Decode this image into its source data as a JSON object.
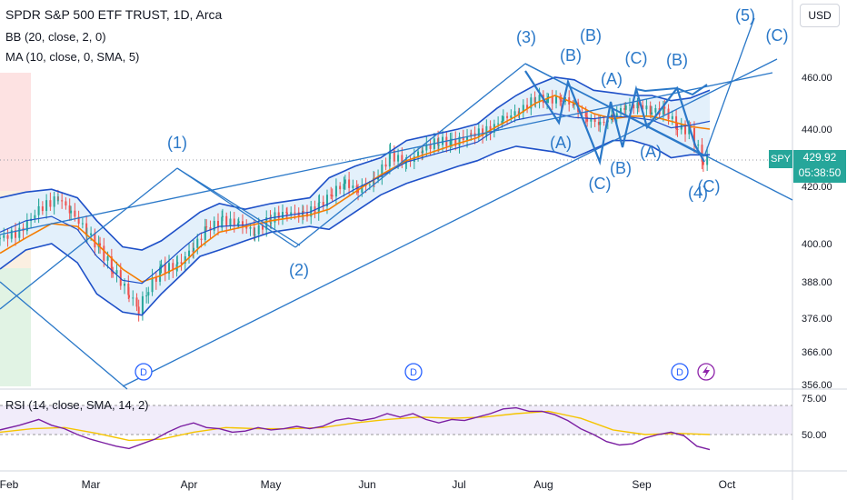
{
  "header": {
    "title": "SPDR S&P 500 ETF TRUST, 1D, Arca",
    "bb": "BB (20, close, 2, 0)",
    "ma": "MA (10, close, 0, SMA, 5)",
    "rsi": "RSI (14, close, SMA, 14, 2)",
    "currency": "USD"
  },
  "price_tag": {
    "symbol": "SPY",
    "price": "429.92",
    "countdown": "05:38:50",
    "color": "#26a69a"
  },
  "colors": {
    "candle_up": "#26a69a",
    "candle_down": "#ef5350",
    "bb": "#1e50c8",
    "bb_fill": "#e3f0fb",
    "ma": "#f57c00",
    "wave": "#2a78c8",
    "rsi_line": "#7b1fa2",
    "rsi_ma": "#f5c400",
    "rsi_band": "#f1ecfa"
  },
  "chart_data": {
    "type": "line",
    "price_axis": {
      "ticks": [
        460,
        440,
        420,
        400,
        388,
        376,
        366,
        356
      ],
      "labels": [
        "460.00",
        "440.00",
        "420.00",
        "400.00",
        "388.00",
        "376.00",
        "366.00",
        "356.00"
      ]
    },
    "rsi_axis": {
      "ticks": [
        75,
        50
      ],
      "labels": [
        "75.00",
        "50.00"
      ]
    },
    "months": [
      "Feb",
      "Mar",
      "Apr",
      "May",
      "Jun",
      "Jul",
      "Aug",
      "Sep",
      "Oct"
    ],
    "price_close": [
      [
        0,
        402
      ],
      [
        6,
        404
      ],
      [
        12,
        412
      ],
      [
        18,
        416
      ],
      [
        22,
        411
      ],
      [
        27,
        404
      ],
      [
        31,
        398
      ],
      [
        35,
        392
      ],
      [
        40,
        384
      ],
      [
        43,
        379
      ],
      [
        46,
        386
      ],
      [
        50,
        392
      ],
      [
        55,
        393
      ],
      [
        60,
        399
      ],
      [
        64,
        405
      ],
      [
        69,
        408
      ],
      [
        74,
        407
      ],
      [
        79,
        404
      ],
      [
        84,
        409
      ],
      [
        89,
        411
      ],
      [
        94,
        410
      ],
      [
        99,
        413
      ],
      [
        103,
        418
      ],
      [
        107,
        421
      ],
      [
        111,
        419
      ],
      [
        116,
        422
      ],
      [
        121,
        431
      ],
      [
        126,
        428
      ],
      [
        131,
        433
      ],
      [
        136,
        436
      ],
      [
        140,
        435
      ],
      [
        146,
        438
      ],
      [
        152,
        440
      ],
      [
        156,
        444
      ],
      [
        161,
        447
      ],
      [
        166,
        452
      ],
      [
        170,
        451
      ],
      [
        174,
        452
      ],
      [
        178,
        449
      ],
      [
        182,
        444
      ],
      [
        186,
        442
      ],
      [
        190,
        445
      ],
      [
        194,
        449
      ],
      [
        198,
        449
      ],
      [
        202,
        447
      ],
      [
        206,
        447
      ],
      [
        210,
        441
      ],
      [
        214,
        439
      ],
      [
        218,
        429
      ],
      [
        220,
        430
      ]
    ],
    "bb_upper": [
      [
        0,
        416
      ],
      [
        8,
        418
      ],
      [
        16,
        419
      ],
      [
        24,
        416
      ],
      [
        30,
        408
      ],
      [
        38,
        399
      ],
      [
        44,
        398
      ],
      [
        50,
        401
      ],
      [
        56,
        406
      ],
      [
        62,
        411
      ],
      [
        68,
        414
      ],
      [
        76,
        412
      ],
      [
        84,
        414
      ],
      [
        90,
        415
      ],
      [
        96,
        416
      ],
      [
        102,
        423
      ],
      [
        110,
        427
      ],
      [
        118,
        430
      ],
      [
        126,
        436
      ],
      [
        134,
        438
      ],
      [
        142,
        440
      ],
      [
        148,
        442
      ],
      [
        154,
        448
      ],
      [
        160,
        453
      ],
      [
        166,
        457
      ],
      [
        172,
        460
      ],
      [
        178,
        459
      ],
      [
        184,
        455
      ],
      [
        190,
        454
      ],
      [
        196,
        453
      ],
      [
        202,
        453
      ],
      [
        208,
        451
      ],
      [
        214,
        452
      ],
      [
        220,
        455
      ]
    ],
    "bb_lower": [
      [
        0,
        392
      ],
      [
        8,
        398
      ],
      [
        16,
        400
      ],
      [
        24,
        394
      ],
      [
        30,
        384
      ],
      [
        38,
        378
      ],
      [
        44,
        377
      ],
      [
        50,
        384
      ],
      [
        56,
        390
      ],
      [
        62,
        396
      ],
      [
        68,
        398
      ],
      [
        76,
        401
      ],
      [
        84,
        404
      ],
      [
        90,
        405
      ],
      [
        96,
        406
      ],
      [
        102,
        405
      ],
      [
        110,
        411
      ],
      [
        118,
        417
      ],
      [
        126,
        421
      ],
      [
        134,
        424
      ],
      [
        142,
        427
      ],
      [
        148,
        429
      ],
      [
        154,
        432
      ],
      [
        160,
        434
      ],
      [
        166,
        433
      ],
      [
        172,
        432
      ],
      [
        178,
        430
      ],
      [
        184,
        433
      ],
      [
        190,
        436
      ],
      [
        196,
        436
      ],
      [
        202,
        434
      ],
      [
        208,
        430
      ],
      [
        214,
        431
      ],
      [
        220,
        431
      ]
    ],
    "ma": [
      [
        0,
        397
      ],
      [
        8,
        402
      ],
      [
        16,
        407
      ],
      [
        24,
        406
      ],
      [
        30,
        400
      ],
      [
        38,
        392
      ],
      [
        44,
        388
      ],
      [
        50,
        390
      ],
      [
        56,
        393
      ],
      [
        62,
        399
      ],
      [
        68,
        404
      ],
      [
        76,
        406
      ],
      [
        84,
        408
      ],
      [
        90,
        409
      ],
      [
        96,
        410
      ],
      [
        102,
        412
      ],
      [
        110,
        418
      ],
      [
        118,
        424
      ],
      [
        126,
        429
      ],
      [
        134,
        432
      ],
      [
        142,
        435
      ],
      [
        148,
        437
      ],
      [
        154,
        441
      ],
      [
        160,
        445
      ],
      [
        166,
        450
      ],
      [
        172,
        453
      ],
      [
        178,
        450
      ],
      [
        184,
        446
      ],
      [
        190,
        444
      ],
      [
        196,
        445
      ],
      [
        202,
        445
      ],
      [
        208,
        443
      ],
      [
        214,
        441
      ],
      [
        220,
        440
      ]
    ],
    "rsi": [
      [
        0,
        54
      ],
      [
        6,
        58
      ],
      [
        12,
        63
      ],
      [
        16,
        58
      ],
      [
        20,
        55
      ],
      [
        24,
        50
      ],
      [
        28,
        46
      ],
      [
        32,
        43
      ],
      [
        36,
        40
      ],
      [
        40,
        38
      ],
      [
        44,
        42
      ],
      [
        48,
        46
      ],
      [
        52,
        52
      ],
      [
        56,
        57
      ],
      [
        60,
        60
      ],
      [
        64,
        56
      ],
      [
        68,
        55
      ],
      [
        72,
        52
      ],
      [
        76,
        53
      ],
      [
        80,
        56
      ],
      [
        84,
        54
      ],
      [
        88,
        55
      ],
      [
        92,
        57
      ],
      [
        96,
        55
      ],
      [
        100,
        57
      ],
      [
        104,
        62
      ],
      [
        108,
        64
      ],
      [
        112,
        62
      ],
      [
        116,
        64
      ],
      [
        120,
        68
      ],
      [
        124,
        65
      ],
      [
        128,
        68
      ],
      [
        132,
        63
      ],
      [
        136,
        60
      ],
      [
        140,
        63
      ],
      [
        144,
        62
      ],
      [
        148,
        65
      ],
      [
        152,
        68
      ],
      [
        156,
        72
      ],
      [
        160,
        73
      ],
      [
        164,
        70
      ],
      [
        168,
        70
      ],
      [
        172,
        67
      ],
      [
        176,
        62
      ],
      [
        180,
        55
      ],
      [
        184,
        50
      ],
      [
        188,
        44
      ],
      [
        192,
        41
      ],
      [
        196,
        42
      ],
      [
        200,
        47
      ],
      [
        204,
        50
      ],
      [
        208,
        52
      ],
      [
        212,
        49
      ],
      [
        216,
        40
      ],
      [
        220,
        37
      ]
    ],
    "rsi_ma": [
      [
        0,
        52
      ],
      [
        10,
        55
      ],
      [
        20,
        56
      ],
      [
        30,
        51
      ],
      [
        40,
        45
      ],
      [
        50,
        46
      ],
      [
        60,
        52
      ],
      [
        70,
        56
      ],
      [
        80,
        55
      ],
      [
        90,
        55
      ],
      [
        100,
        56
      ],
      [
        110,
        60
      ],
      [
        120,
        63
      ],
      [
        130,
        65
      ],
      [
        140,
        64
      ],
      [
        150,
        65
      ],
      [
        160,
        68
      ],
      [
        170,
        70
      ],
      [
        180,
        64
      ],
      [
        190,
        54
      ],
      [
        200,
        50
      ],
      [
        210,
        51
      ],
      [
        220,
        50
      ]
    ]
  },
  "wave_labels": [
    "(1)",
    "(2)",
    "(3)",
    "(4)",
    "(5)",
    "(A)",
    "(B)",
    "(C)",
    "(A)",
    "(B)",
    "(C)",
    "(A)",
    "(B)",
    "(C)",
    "(B)",
    "(C)"
  ],
  "dividend_marker": "D"
}
